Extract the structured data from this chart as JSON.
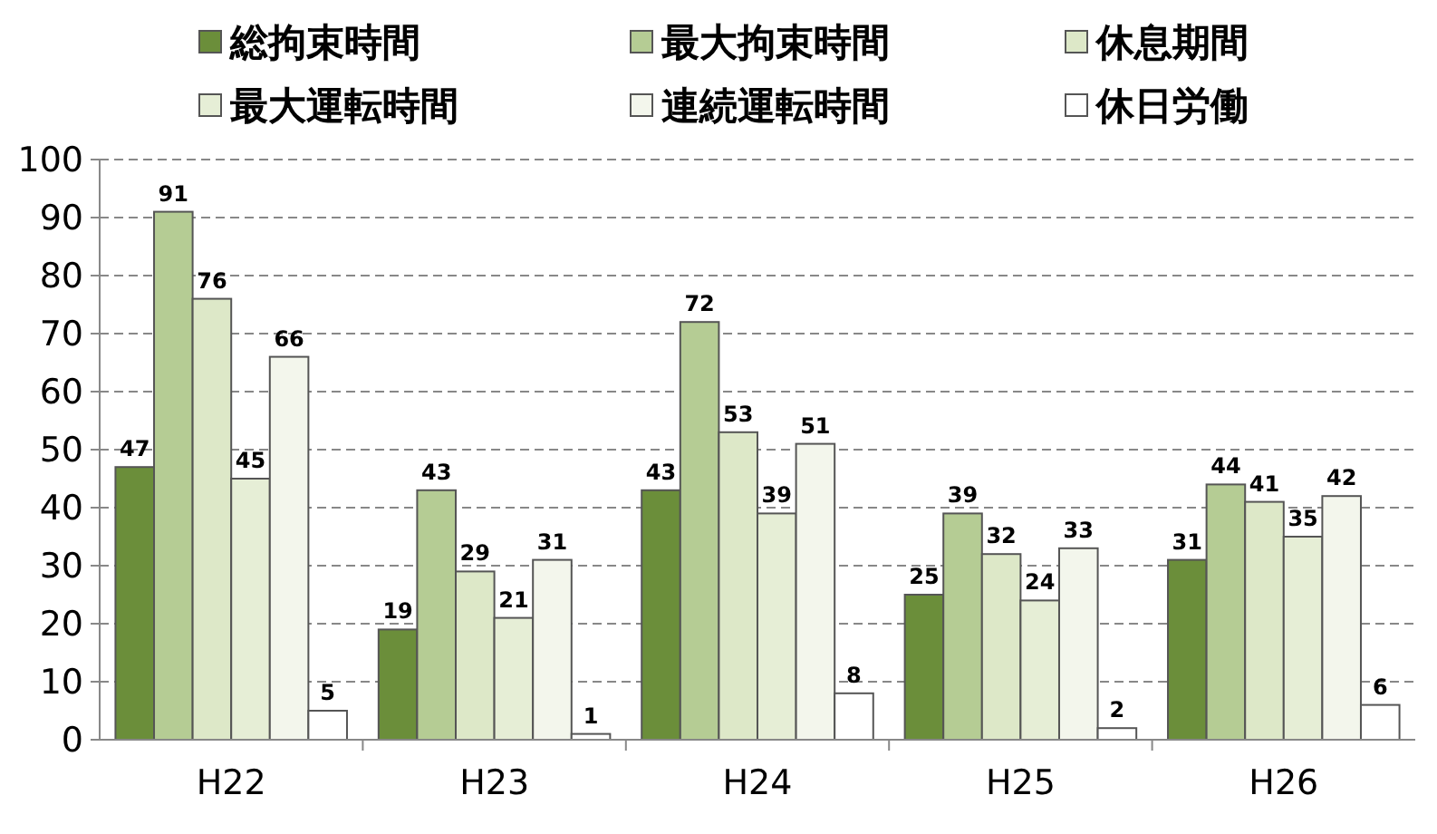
{
  "chart_data": {
    "type": "bar",
    "categories": [
      "H22",
      "H23",
      "H24",
      "H25",
      "H26"
    ],
    "series": [
      {
        "name": "総拘束時間",
        "color": "#6b8e3a",
        "values": [
          47,
          19,
          43,
          25,
          31
        ]
      },
      {
        "name": "最大拘束時間",
        "color": "#b5cc94",
        "values": [
          91,
          43,
          72,
          39,
          44
        ]
      },
      {
        "name": "休息期間",
        "color": "#dde8c8",
        "values": [
          76,
          29,
          53,
          32,
          41
        ]
      },
      {
        "name": "最大運転時間",
        "color": "#e6eed6",
        "values": [
          45,
          21,
          39,
          24,
          35
        ]
      },
      {
        "name": "連続運転時間",
        "color": "#f3f6ec",
        "values": [
          66,
          31,
          51,
          33,
          42
        ]
      },
      {
        "name": "休日労働",
        "color": "#ffffff",
        "values": [
          5,
          1,
          8,
          2,
          6
        ]
      }
    ],
    "ylim": [
      0,
      100
    ],
    "yticks": [
      0,
      10,
      20,
      30,
      40,
      50,
      60,
      70,
      80,
      90,
      100
    ],
    "grid": "y",
    "legend": "top",
    "data_labels": true
  }
}
